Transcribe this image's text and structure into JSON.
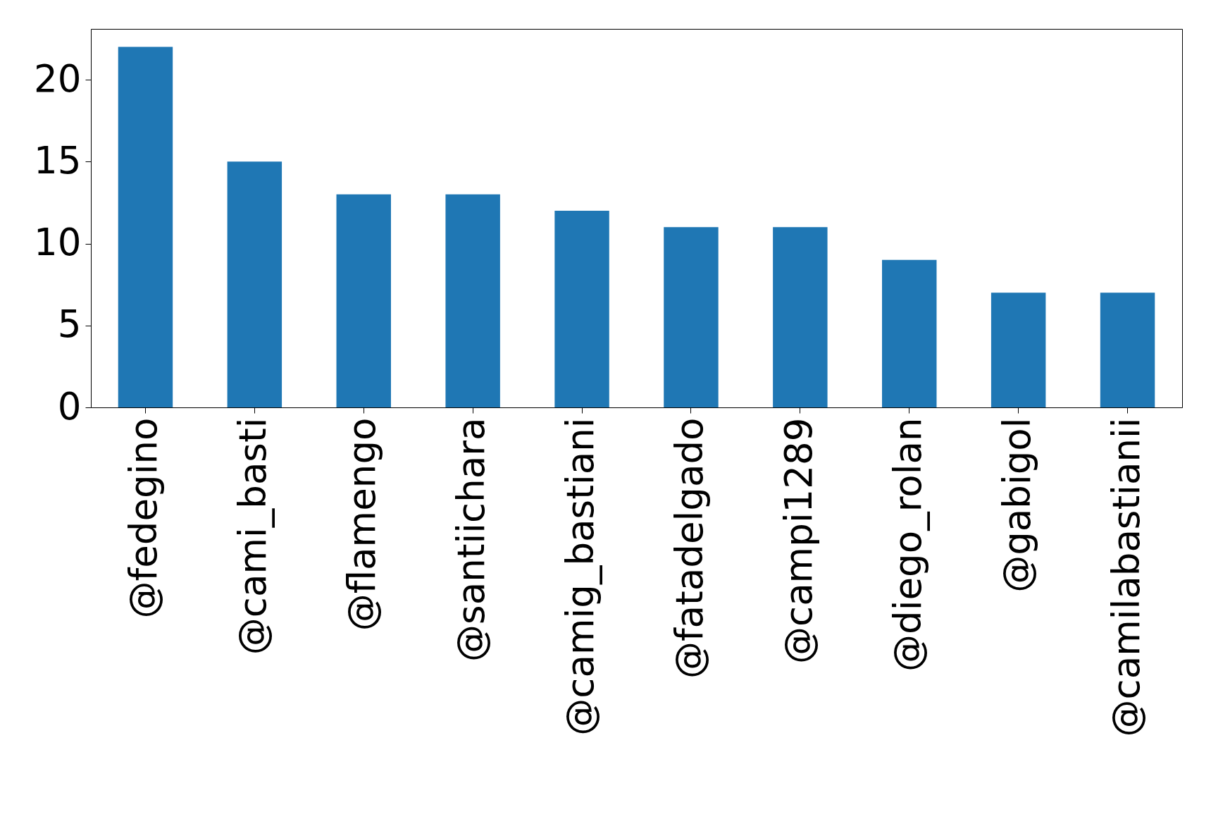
{
  "chart_data": {
    "type": "bar",
    "categories": [
      "@fedegino",
      "@cami_basti",
      "@flamengo",
      "@santiichara",
      "@camig_bastiani",
      "@fatadelgado",
      "@campi1289",
      "@diego_rolan",
      "@gabigol",
      "@camilabastianii"
    ],
    "values": [
      22,
      15,
      13,
      13,
      12,
      11,
      11,
      9,
      7,
      7
    ],
    "color": "#1f77b4",
    "ylim": [
      0,
      23.1
    ],
    "yticks": [
      0,
      5,
      10,
      15,
      20
    ],
    "grid": false
  }
}
